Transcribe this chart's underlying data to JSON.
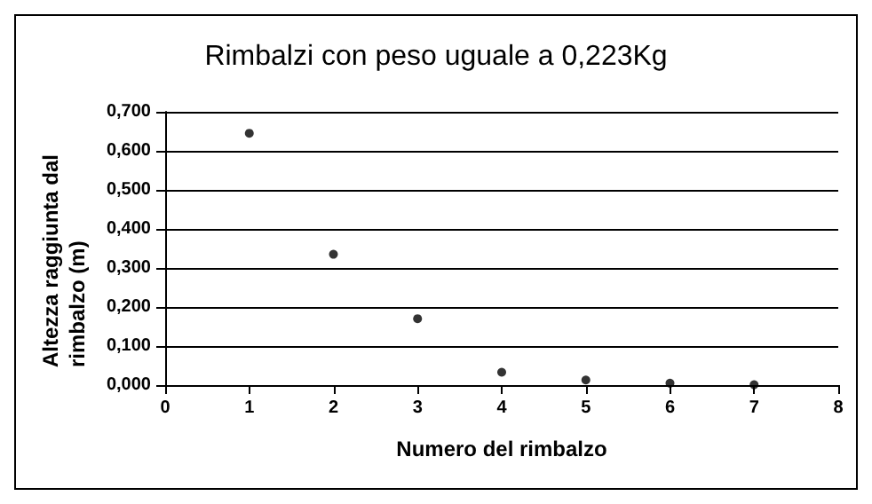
{
  "chart_data": {
    "type": "scatter",
    "title": "Rimbalzi con peso uguale a 0,223Kg",
    "xlabel": "Numero del rimbalzo",
    "ylabel": "Altezza raggiunta dal rimbalzo (m)",
    "x": [
      1,
      2,
      3,
      4,
      5,
      6,
      7
    ],
    "series": [
      {
        "color": "#000000",
        "values": [
          0.645,
          0.335,
          0.17,
          0.033,
          0.013,
          0.005,
          0.001
        ]
      }
    ],
    "xlim": [
      0,
      8
    ],
    "xticks": [
      0,
      1,
      2,
      3,
      4,
      5,
      6,
      7,
      8
    ],
    "ylim": [
      0,
      0.7
    ],
    "yticks": [
      {
        "value": 0,
        "label": "0,000"
      },
      {
        "value": 0.1,
        "label": "0,100"
      },
      {
        "value": 0.2,
        "label": "0,200"
      },
      {
        "value": 0.3,
        "label": "0,300"
      },
      {
        "value": 0.4,
        "label": "0,400"
      },
      {
        "value": 0.5,
        "label": "0,500"
      },
      {
        "value": 0.6,
        "label": "0,600"
      },
      {
        "value": 0.7,
        "label": "0,700"
      }
    ],
    "grid": "y",
    "marker": "circle"
  }
}
